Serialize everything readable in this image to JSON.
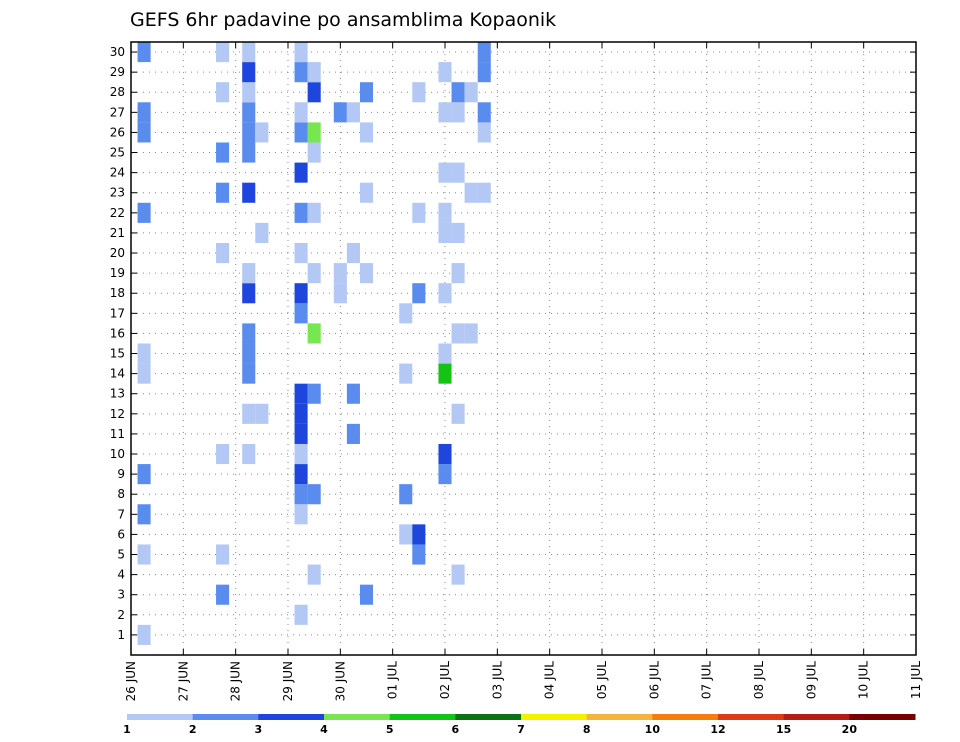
{
  "chart_data": {
    "type": "heatmap",
    "title": "GEFS 6hr padavine po ansamblima Kopaonik",
    "xlabel": "",
    "ylabel": "",
    "x_ticks": [
      "26 JUN",
      "27 JUN",
      "28 JUN",
      "29 JUN",
      "30 JUN",
      "01 JUL",
      "02 JUL",
      "03 JUL",
      "04 JUL",
      "05 JUL",
      "06 JUL",
      "07 JUL",
      "08 JUL",
      "09 JUL",
      "10 JUL",
      "11 JUL"
    ],
    "y_ticks": [
      "1",
      "2",
      "3",
      "4",
      "5",
      "6",
      "7",
      "8",
      "9",
      "10",
      "11",
      "12",
      "13",
      "14",
      "15",
      "16",
      "17",
      "18",
      "19",
      "20",
      "21",
      "22",
      "23",
      "24",
      "25",
      "26",
      "27",
      "28",
      "29",
      "30"
    ],
    "xlim_days": [
      0,
      15
    ],
    "ylim_members": [
      0,
      30
    ],
    "grid": true,
    "legend": "bottom",
    "colorbar": {
      "labels": [
        "1",
        "2",
        "3",
        "4",
        "5",
        "6",
        "7",
        "8",
        "10",
        "12",
        "15",
        "20"
      ],
      "colors": [
        "#b4c8f5",
        "#5a8cf0",
        "#1e46dc",
        "#78e650",
        "#14c314",
        "#0a7314",
        "#f5f000",
        "#f5b43c",
        "#f57d0a",
        "#dc3c14",
        "#b41e14",
        "#780000"
      ]
    },
    "cells_columns": [
      "day_offset_from_26_JUN_00UTC",
      "ensemble_member",
      "precip_class"
    ],
    "cells": [
      [
        0.25,
        1,
        1
      ],
      [
        0.25,
        5,
        1
      ],
      [
        0.25,
        7,
        2
      ],
      [
        0.25,
        9,
        2
      ],
      [
        0.25,
        14,
        1
      ],
      [
        0.25,
        15,
        1
      ],
      [
        0.25,
        22,
        2
      ],
      [
        0.25,
        26,
        2
      ],
      [
        0.25,
        27,
        2
      ],
      [
        0.25,
        30,
        2
      ],
      [
        1.75,
        3,
        2
      ],
      [
        1.75,
        5,
        1
      ],
      [
        1.75,
        10,
        1
      ],
      [
        1.75,
        20,
        1
      ],
      [
        1.75,
        23,
        2
      ],
      [
        1.75,
        25,
        2
      ],
      [
        1.75,
        28,
        1
      ],
      [
        1.75,
        30,
        1
      ],
      [
        2.25,
        10,
        1
      ],
      [
        2.25,
        12,
        1
      ],
      [
        2.25,
        14,
        2
      ],
      [
        2.25,
        15,
        2
      ],
      [
        2.25,
        16,
        2
      ],
      [
        2.25,
        18,
        3
      ],
      [
        2.25,
        19,
        1
      ],
      [
        2.25,
        23,
        3
      ],
      [
        2.25,
        25,
        2
      ],
      [
        2.25,
        26,
        2
      ],
      [
        2.25,
        27,
        2
      ],
      [
        2.25,
        28,
        1
      ],
      [
        2.25,
        29,
        3
      ],
      [
        2.25,
        30,
        1
      ],
      [
        2.5,
        12,
        1
      ],
      [
        2.5,
        21,
        1
      ],
      [
        2.5,
        26,
        1
      ],
      [
        3.25,
        2,
        1
      ],
      [
        3.25,
        7,
        1
      ],
      [
        3.25,
        8,
        2
      ],
      [
        3.25,
        9,
        3
      ],
      [
        3.25,
        10,
        1
      ],
      [
        3.25,
        11,
        3
      ],
      [
        3.25,
        12,
        3
      ],
      [
        3.25,
        13,
        3
      ],
      [
        3.25,
        17,
        2
      ],
      [
        3.25,
        18,
        3
      ],
      [
        3.25,
        20,
        1
      ],
      [
        3.25,
        22,
        2
      ],
      [
        3.25,
        24,
        3
      ],
      [
        3.25,
        26,
        2
      ],
      [
        3.25,
        27,
        1
      ],
      [
        3.25,
        29,
        2
      ],
      [
        3.25,
        30,
        1
      ],
      [
        3.5,
        4,
        1
      ],
      [
        3.5,
        8,
        2
      ],
      [
        3.5,
        13,
        2
      ],
      [
        3.5,
        16,
        4
      ],
      [
        3.5,
        19,
        1
      ],
      [
        3.5,
        22,
        1
      ],
      [
        3.5,
        25,
        1
      ],
      [
        3.5,
        26,
        4
      ],
      [
        3.5,
        28,
        3
      ],
      [
        3.5,
        29,
        1
      ],
      [
        4.0,
        18,
        1
      ],
      [
        4.0,
        19,
        1
      ],
      [
        4.0,
        27,
        2
      ],
      [
        4.25,
        11,
        2
      ],
      [
        4.25,
        13,
        2
      ],
      [
        4.25,
        20,
        1
      ],
      [
        4.25,
        27,
        1
      ],
      [
        4.5,
        3,
        2
      ],
      [
        4.5,
        19,
        1
      ],
      [
        4.5,
        23,
        1
      ],
      [
        4.5,
        26,
        1
      ],
      [
        4.5,
        28,
        2
      ],
      [
        5.25,
        6,
        1
      ],
      [
        5.25,
        8,
        2
      ],
      [
        5.25,
        14,
        1
      ],
      [
        5.25,
        17,
        1
      ],
      [
        5.5,
        5,
        2
      ],
      [
        5.5,
        6,
        3
      ],
      [
        5.5,
        18,
        2
      ],
      [
        5.5,
        22,
        1
      ],
      [
        5.5,
        28,
        1
      ],
      [
        6.0,
        9,
        2
      ],
      [
        6.0,
        10,
        3
      ],
      [
        6.0,
        14,
        5
      ],
      [
        6.0,
        15,
        1
      ],
      [
        6.0,
        18,
        1
      ],
      [
        6.0,
        21,
        1
      ],
      [
        6.0,
        22,
        1
      ],
      [
        6.0,
        24,
        1
      ],
      [
        6.0,
        27,
        1
      ],
      [
        6.0,
        29,
        1
      ],
      [
        6.25,
        4,
        1
      ],
      [
        6.25,
        12,
        1
      ],
      [
        6.25,
        16,
        1
      ],
      [
        6.25,
        19,
        1
      ],
      [
        6.25,
        21,
        1
      ],
      [
        6.25,
        24,
        1
      ],
      [
        6.25,
        27,
        1
      ],
      [
        6.25,
        28,
        2
      ],
      [
        6.5,
        16,
        1
      ],
      [
        6.5,
        23,
        1
      ],
      [
        6.5,
        28,
        1
      ],
      [
        6.75,
        23,
        1
      ],
      [
        6.75,
        26,
        1
      ],
      [
        6.75,
        27,
        2
      ],
      [
        6.75,
        29,
        2
      ],
      [
        6.75,
        30,
        2
      ]
    ]
  }
}
